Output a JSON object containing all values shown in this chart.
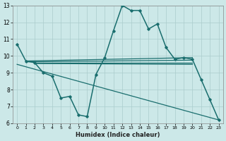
{
  "xlabel": "Humidex (Indice chaleur)",
  "bg_color": "#cce8e8",
  "grid_color": "#aacccc",
  "line_color": "#1a6e6e",
  "xlim": [
    -0.5,
    23.5
  ],
  "ylim": [
    6,
    13
  ],
  "yticks": [
    6,
    7,
    8,
    9,
    10,
    11,
    12,
    13
  ],
  "xticks": [
    0,
    1,
    2,
    3,
    4,
    5,
    6,
    7,
    8,
    9,
    10,
    11,
    12,
    13,
    14,
    15,
    16,
    17,
    18,
    19,
    20,
    21,
    22,
    23
  ],
  "main_x": [
    0,
    1,
    2,
    3,
    4,
    5,
    6,
    7,
    8,
    9,
    10,
    11,
    12,
    13,
    14,
    15,
    16,
    17,
    18,
    19,
    20,
    21,
    22,
    23
  ],
  "main_y": [
    10.7,
    9.7,
    9.6,
    9.0,
    8.8,
    7.5,
    7.6,
    6.5,
    6.4,
    8.9,
    9.9,
    11.5,
    13.0,
    12.7,
    12.7,
    11.6,
    11.9,
    10.5,
    9.8,
    9.9,
    9.8,
    8.6,
    7.4,
    6.2
  ],
  "flat_lines": [
    {
      "x0": 1,
      "y0": 9.7,
      "x1": 20,
      "y1": 9.9
    },
    {
      "x0": 1,
      "y0": 9.65,
      "x1": 20,
      "y1": 9.75
    },
    {
      "x0": 2,
      "y0": 9.6,
      "x1": 20,
      "y1": 9.6
    },
    {
      "x0": 2,
      "y0": 9.55,
      "x1": 20,
      "y1": 9.5
    }
  ],
  "decline_line": {
    "x0": 0,
    "y0": 9.5,
    "x1": 23,
    "y1": 6.2
  }
}
